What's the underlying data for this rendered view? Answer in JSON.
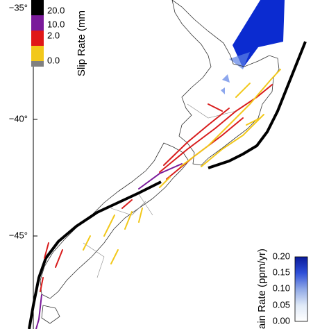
{
  "latitude_labels": [
    "−35°",
    "−40°",
    "−45°"
  ],
  "slip_legend": {
    "title": "Slip Rate (mm",
    "labels": [
      "20.0",
      "10.0",
      "2.0",
      "0.0"
    ]
  },
  "strain_legend": {
    "title": "ain Rate (ppm/yr)",
    "labels": [
      "0.20",
      "0.15",
      "0.10",
      "0.05",
      "0.00"
    ]
  }
}
